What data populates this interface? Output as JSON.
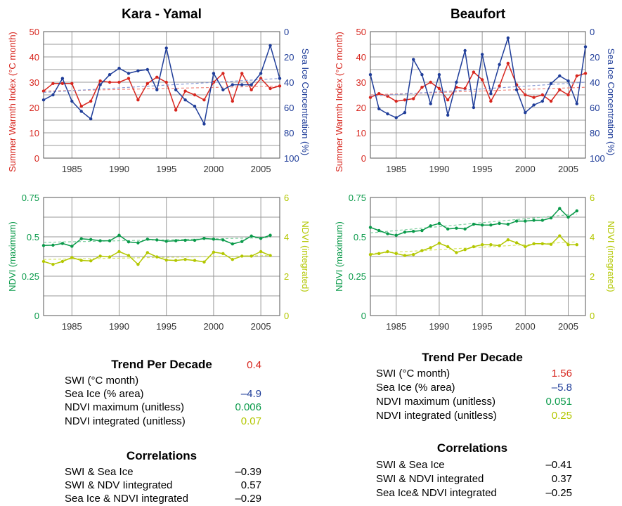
{
  "colors": {
    "swi": "#d7261e",
    "ice": "#1f3d99",
    "ndvimax": "#0a9a4a",
    "ndviint": "#b3c700",
    "grid": "#9a9a9a",
    "frame": "#555555",
    "text": "#000000"
  },
  "chart_data": [
    {
      "type": "line",
      "title": "Kara - Yamal",
      "x": [
        1982,
        1983,
        1984,
        1985,
        1986,
        1987,
        1988,
        1989,
        1990,
        1991,
        1992,
        1993,
        1994,
        1995,
        1996,
        1997,
        1998,
        1999,
        2000,
        2001,
        2002,
        2003,
        2004,
        2005,
        2006,
        2007
      ],
      "xlim": [
        1982,
        2007
      ],
      "xticks": [
        1985,
        1990,
        1995,
        2000,
        2005
      ],
      "ylabel": "Summer Warmth Index (°C month)",
      "ylim": [
        0,
        50
      ],
      "yticks": [
        0,
        10,
        20,
        30,
        40,
        50
      ],
      "y2label": "Sea Ice Concentration (%)",
      "y2lim": [
        100,
        0
      ],
      "y2ticks": [
        0,
        20,
        40,
        60,
        80,
        100
      ],
      "series": [
        {
          "axis": "left",
          "values": [
            26.5,
            29.5,
            29.5,
            29.5,
            20.5,
            22.5,
            30.5,
            30,
            30,
            31.5,
            23,
            29.5,
            32,
            30,
            19,
            26.5,
            25,
            23,
            30,
            33.5,
            22.5,
            33.5,
            27,
            31.5,
            27.5,
            28.5
          ],
          "trend": [
            26.5,
            28.5
          ]
        },
        {
          "axis": "right",
          "values": [
            54,
            50,
            37,
            55,
            63,
            69,
            42,
            34,
            29,
            33,
            31,
            30,
            46,
            13,
            46,
            54,
            59,
            73,
            33,
            46,
            42,
            42,
            42,
            33,
            11,
            37
          ],
          "trend": [
            48,
            37
          ]
        }
      ]
    },
    {
      "type": "line",
      "title": "Beaufort",
      "x": [
        1982,
        1983,
        1984,
        1985,
        1986,
        1987,
        1988,
        1989,
        1990,
        1991,
        1992,
        1993,
        1994,
        1995,
        1996,
        1997,
        1998,
        1999,
        2000,
        2001,
        2002,
        2003,
        2004,
        2005,
        2006,
        2007
      ],
      "xlim": [
        1982,
        2007
      ],
      "xticks": [
        1985,
        1990,
        1995,
        2000,
        2005
      ],
      "ylabel": "Summer Warmth Index (°C month)",
      "ylim": [
        0,
        50
      ],
      "yticks": [
        0,
        10,
        20,
        30,
        40,
        50
      ],
      "y2label": "Sea Ice Concentration (%)",
      "y2lim": [
        100,
        0
      ],
      "y2ticks": [
        0,
        20,
        40,
        60,
        80,
        100
      ],
      "series": [
        {
          "axis": "left",
          "values": [
            24,
            25.5,
            24.5,
            22.5,
            23,
            23.5,
            28,
            30,
            27.5,
            23,
            28,
            27.5,
            34,
            31,
            22.5,
            28.5,
            37.5,
            29,
            25,
            24,
            25,
            22.5,
            27,
            25,
            32.5,
            33.5
          ],
          "trend": [
            25,
            28
          ]
        },
        {
          "axis": "right",
          "values": [
            34,
            61,
            65,
            68,
            64,
            22,
            34,
            57,
            34,
            66,
            40,
            15,
            60,
            18,
            49,
            26,
            5,
            46,
            64,
            58,
            55,
            41,
            35,
            39,
            57,
            12
          ],
          "trend": [
            51,
            40
          ]
        }
      ]
    },
    {
      "type": "line",
      "title": "",
      "x": [
        1982,
        1983,
        1984,
        1985,
        1986,
        1987,
        1988,
        1989,
        1990,
        1991,
        1992,
        1993,
        1994,
        1995,
        1996,
        1997,
        1998,
        1999,
        2000,
        2001,
        2002,
        2003,
        2004,
        2005,
        2006
      ],
      "xlim": [
        1982,
        2007
      ],
      "xticks": [
        1985,
        1990,
        1995,
        2000,
        2005
      ],
      "ylabel": "NDVI (maximum)",
      "ylim": [
        0,
        0.75
      ],
      "yticks": [
        "0",
        "0.25",
        "0.5",
        "0.75"
      ],
      "y2label": "NDVI (integrated)",
      "y2lim": [
        0,
        6
      ],
      "y2ticks": [
        0,
        2,
        4,
        6
      ],
      "series": [
        {
          "axis": "left",
          "values": [
            0.445,
            0.447,
            0.458,
            0.44,
            0.488,
            0.483,
            0.475,
            0.475,
            0.51,
            0.468,
            0.462,
            0.485,
            0.48,
            0.472,
            0.475,
            0.478,
            0.478,
            0.49,
            0.485,
            0.48,
            0.455,
            0.47,
            0.505,
            0.49,
            0.51
          ],
          "trend": [
            0.465,
            0.495
          ]
        },
        {
          "axis": "right",
          "values": [
            2.75,
            2.6,
            2.75,
            2.95,
            2.8,
            2.78,
            3.02,
            2.98,
            3.25,
            3.05,
            2.6,
            3.2,
            2.98,
            2.82,
            2.8,
            2.85,
            2.8,
            2.72,
            3.22,
            3.15,
            2.85,
            3.02,
            3.02,
            3.25,
            3.05
          ],
          "trend": [
            2.85,
            3.05
          ]
        }
      ]
    },
    {
      "type": "line",
      "title": "",
      "x": [
        1982,
        1983,
        1984,
        1985,
        1986,
        1987,
        1988,
        1989,
        1990,
        1991,
        1992,
        1993,
        1994,
        1995,
        1996,
        1997,
        1998,
        1999,
        2000,
        2001,
        2002,
        2003,
        2004,
        2005,
        2006
      ],
      "xlim": [
        1982,
        2007
      ],
      "xticks": [
        1985,
        1990,
        1995,
        2000,
        2005
      ],
      "ylabel": "NDVI (maximum)",
      "ylim": [
        0,
        0.75
      ],
      "yticks": [
        "0",
        "0.25",
        "0.5",
        "0.75"
      ],
      "y2label": "NDVI (integrated)",
      "y2lim": [
        0,
        6
      ],
      "y2ticks": [
        0,
        2,
        4,
        6
      ],
      "series": [
        {
          "axis": "left",
          "values": [
            0.56,
            0.54,
            0.52,
            0.51,
            0.53,
            0.535,
            0.54,
            0.57,
            0.585,
            0.55,
            0.555,
            0.55,
            0.58,
            0.575,
            0.575,
            0.585,
            0.58,
            0.6,
            0.6,
            0.605,
            0.605,
            0.62,
            0.68,
            0.625,
            0.665
          ],
          "trend": [
            0.525,
            0.645
          ]
        },
        {
          "axis": "right",
          "values": [
            3.1,
            3.15,
            3.25,
            3.15,
            3.05,
            3.1,
            3.3,
            3.45,
            3.68,
            3.5,
            3.2,
            3.35,
            3.5,
            3.6,
            3.6,
            3.55,
            3.85,
            3.7,
            3.5,
            3.65,
            3.65,
            3.62,
            4.05,
            3.6,
            3.6
          ],
          "trend": [
            3.15,
            3.75
          ]
        }
      ]
    }
  ],
  "stats": {
    "left": {
      "trend_title": "Trend Per Decade",
      "trend_rows": [
        {
          "label": "SWI (°C month)",
          "value": "0.4"
        },
        {
          "label": "Sea Ice (% area)",
          "value": "–4.9"
        },
        {
          "label": "NDVI maximum (unitless)",
          "value": "0.006"
        },
        {
          "label": "NDVI integrated (unitless)",
          "value": "0.07"
        }
      ],
      "corr_title": "Correlations",
      "corr_rows": [
        {
          "label": "SWI & Sea Ice",
          "value": "–0.39"
        },
        {
          "label": "SWI & NDV Iintegrated",
          "value": "0.57"
        },
        {
          "label": "Sea Ice & NDVI integrated",
          "value": "–0.29"
        }
      ]
    },
    "right": {
      "trend_title": "Trend Per Decade",
      "trend_rows": [
        {
          "label": "SWI (°C month)",
          "value": "1.56"
        },
        {
          "label": "Sea Ice (% area)",
          "value": "–5.8"
        },
        {
          "label": "NDVI maximum (unitless)",
          "value": "0.051"
        },
        {
          "label": "NDVI integrated (unitless)",
          "value": "0.25"
        }
      ],
      "corr_title": "Correlations",
      "corr_rows": [
        {
          "label": "SWI & Sea Ice",
          "value": "–0.41"
        },
        {
          "label": "SWI & NDVI integrated",
          "value": "0.37"
        },
        {
          "label": "Sea Ice&  NDVI integrated",
          "value": "–0.25"
        }
      ]
    }
  }
}
